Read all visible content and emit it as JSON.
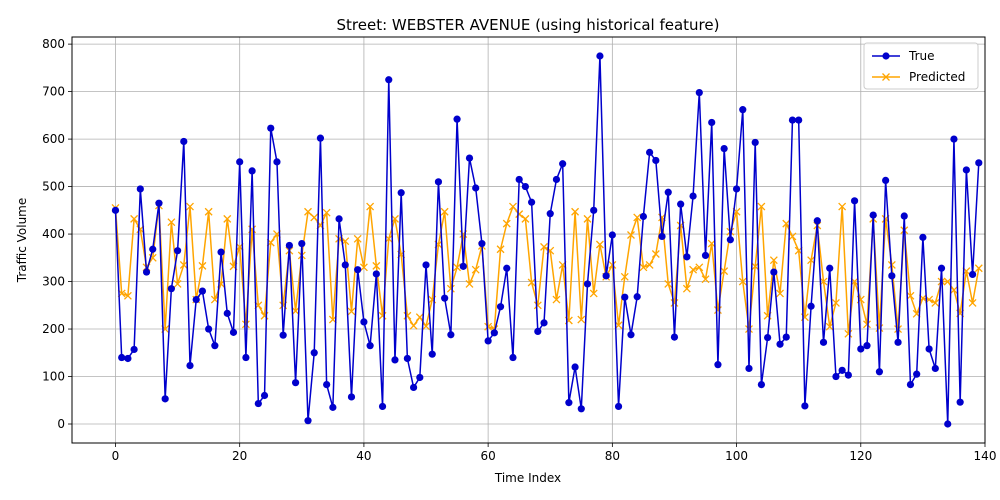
{
  "chart_data": {
    "type": "line",
    "title": "Street: WEBSTER AVENUE (using historical feature)",
    "xlabel": "Time Index",
    "ylabel": "Traffic Volume",
    "xlim": [
      -7,
      140
    ],
    "ylim": [
      -40,
      815
    ],
    "xticks": [
      0,
      20,
      40,
      60,
      80,
      100,
      120,
      140
    ],
    "yticks": [
      0,
      100,
      200,
      300,
      400,
      500,
      600,
      700,
      800
    ],
    "grid": true,
    "legend_position": "upper right",
    "series": [
      {
        "name": "True",
        "color": "#0000cc",
        "marker": "circle",
        "values": [
          450,
          140,
          138,
          157,
          495,
          320,
          368,
          465,
          53,
          285,
          365,
          595,
          123,
          262,
          280,
          200,
          165,
          362,
          233,
          193,
          552,
          140,
          533,
          43,
          60,
          623,
          552,
          187,
          376,
          87,
          380,
          7,
          150,
          602,
          83,
          35,
          432,
          335,
          57,
          325,
          215,
          165,
          316,
          37,
          725,
          135,
          487,
          138,
          77,
          98,
          335,
          147,
          510,
          265,
          188,
          642,
          332,
          560,
          497,
          380,
          175,
          192,
          247,
          328,
          140,
          515,
          500,
          467,
          195,
          213,
          443,
          515,
          548,
          45,
          120,
          32,
          295,
          450,
          775,
          312,
          398,
          37,
          267,
          188,
          268,
          437,
          572,
          555,
          395,
          488,
          183,
          463,
          352,
          480,
          698,
          355,
          635,
          125,
          580,
          388,
          495,
          662,
          117,
          593,
          83,
          182,
          320,
          168,
          183,
          640,
          640,
          38,
          248,
          428,
          172,
          328,
          100,
          113,
          103,
          470,
          158,
          165,
          440,
          110,
          513,
          312,
          172,
          438,
          83,
          105,
          393,
          158,
          117,
          328,
          0,
          600,
          46,
          535,
          315,
          550
        ]
      },
      {
        "name": "Predicted",
        "color": "#ffa500",
        "marker": "x",
        "values": [
          455,
          275,
          270,
          432,
          410,
          330,
          350,
          460,
          200,
          425,
          295,
          335,
          458,
          262,
          333,
          447,
          262,
          295,
          432,
          332,
          373,
          210,
          410,
          250,
          228,
          382,
          400,
          250,
          365,
          238,
          355,
          447,
          435,
          418,
          445,
          220,
          390,
          385,
          237,
          390,
          330,
          458,
          333,
          228,
          390,
          432,
          357,
          228,
          207,
          225,
          206,
          262,
          378,
          447,
          285,
          330,
          400,
          295,
          325,
          375,
          205,
          200,
          368,
          422,
          458,
          442,
          432,
          298,
          250,
          373,
          365,
          262,
          335,
          218,
          447,
          220,
          432,
          275,
          378,
          310,
          335,
          208,
          310,
          398,
          435,
          330,
          335,
          358,
          435,
          295,
          255,
          418,
          285,
          325,
          330,
          305,
          380,
          240,
          322,
          405,
          447,
          300,
          200,
          332,
          458,
          228,
          345,
          275,
          422,
          395,
          365,
          225,
          345,
          418,
          300,
          205,
          255,
          458,
          190,
          300,
          262,
          210,
          432,
          202,
          432,
          335,
          200,
          408,
          270,
          232,
          265,
          262,
          255,
          300,
          300,
          282,
          233,
          322,
          255,
          328
        ]
      }
    ]
  }
}
